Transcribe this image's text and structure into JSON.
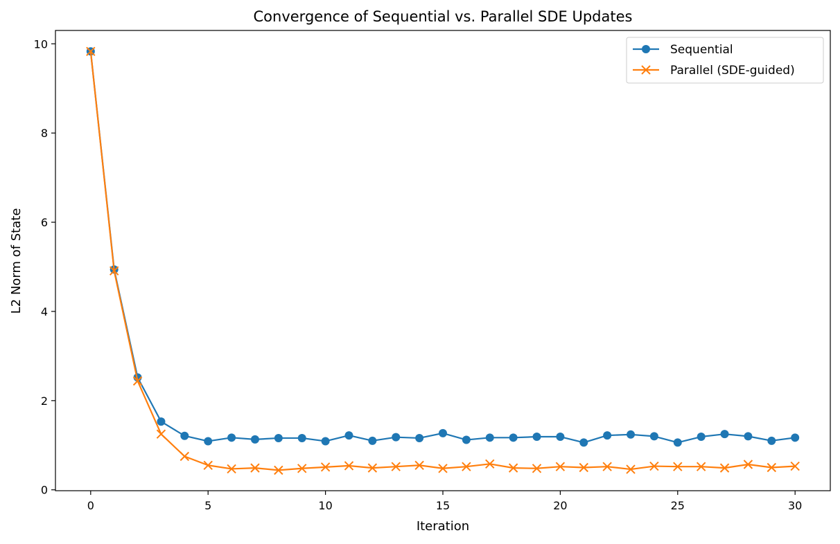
{
  "chart_data": {
    "type": "line",
    "title": "Convergence of Sequential vs. Parallel SDE Updates",
    "xlabel": "Iteration",
    "ylabel": "L2 Norm of State",
    "xlim": [
      -1.5,
      31.5
    ],
    "ylim": [
      -0.02,
      10.3
    ],
    "xticks": [
      0,
      5,
      10,
      15,
      20,
      25,
      30
    ],
    "yticks": [
      0,
      2,
      4,
      6,
      8,
      10
    ],
    "grid": false,
    "legend_position": "top-right",
    "x": [
      0,
      1,
      2,
      3,
      4,
      5,
      6,
      7,
      8,
      9,
      10,
      11,
      12,
      13,
      14,
      15,
      16,
      17,
      18,
      19,
      20,
      21,
      22,
      23,
      24,
      25,
      26,
      27,
      28,
      29,
      30
    ],
    "series": [
      {
        "name": "Sequential",
        "color": "#1f77b4",
        "marker": "circle",
        "values": [
          9.83,
          4.94,
          2.52,
          1.53,
          1.21,
          1.09,
          1.17,
          1.13,
          1.16,
          1.16,
          1.09,
          1.22,
          1.1,
          1.18,
          1.16,
          1.27,
          1.12,
          1.17,
          1.17,
          1.19,
          1.19,
          1.06,
          1.22,
          1.24,
          1.2,
          1.06,
          1.19,
          1.25,
          1.2,
          1.1,
          1.17
        ]
      },
      {
        "name": "Parallel (SDE-guided)",
        "color": "#ff7f0e",
        "marker": "x",
        "values": [
          9.83,
          4.91,
          2.44,
          1.25,
          0.75,
          0.55,
          0.47,
          0.49,
          0.44,
          0.48,
          0.51,
          0.54,
          0.49,
          0.52,
          0.55,
          0.48,
          0.52,
          0.58,
          0.49,
          0.48,
          0.52,
          0.5,
          0.52,
          0.46,
          0.53,
          0.52,
          0.52,
          0.49,
          0.57,
          0.5,
          0.53
        ]
      }
    ]
  }
}
